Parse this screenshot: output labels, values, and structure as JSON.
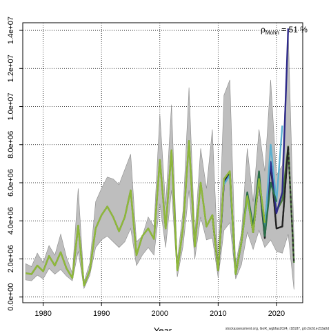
{
  "chart_data": {
    "type": "line",
    "xlabel": "Year",
    "ylabel": "",
    "x_ticks": [
      1980,
      1990,
      2000,
      2010,
      2020
    ],
    "y_ticks": [
      "0.0e+00",
      "2.0e+06",
      "4.0e+06",
      "6.0e+06",
      "8.0e+06",
      "1.0e+07",
      "1.2e+07",
      "1.4e+07"
    ],
    "y_tick_values": [
      0,
      2000000,
      4000000,
      6000000,
      8000000,
      10000000,
      12000000,
      14000000
    ],
    "xlim": [
      1976.5,
      2024.5
    ],
    "ylim": [
      -300000,
      14400000
    ],
    "grid": true,
    "annotation": {
      "symbol": "ρ",
      "subscript": "Mohn",
      "text": " = 51 %"
    },
    "footer": "stockassessment.org, GoR_wgbfas2024, r18187, git:c9c61ec53a0d",
    "band": {
      "color": "#bebebe",
      "x": [
        1977,
        1978,
        1979,
        1980,
        1981,
        1982,
        1983,
        1984,
        1985,
        1986,
        1987,
        1988,
        1989,
        1990,
        1991,
        1992,
        1993,
        1994,
        1995,
        1996,
        1997,
        1998,
        1999,
        2000,
        2001,
        2002,
        2003,
        2004,
        2005,
        2006,
        2007,
        2008,
        2009,
        2010,
        2011,
        2012,
        2013,
        2014,
        2015,
        2016,
        2017,
        2018,
        2019,
        2020,
        2021,
        2022,
        2023
      ],
      "lower": [
        900000,
        850000,
        1150000,
        950000,
        1500000,
        1200000,
        1450000,
        1100000,
        850000,
        2400000,
        450000,
        1150000,
        2600000,
        3000000,
        3200000,
        2900000,
        2600000,
        2900000,
        3600000,
        1650000,
        2200000,
        2600000,
        2200000,
        4900000,
        2600000,
        5600000,
        1050000,
        2700000,
        5600000,
        2000000,
        4200000,
        3000000,
        3100000,
        1000000,
        3500000,
        3900000,
        950000,
        1700000,
        3400000,
        2500000,
        3500000,
        2600000,
        3000000,
        2400000,
        2300000,
        3300000,
        400000
      ],
      "upper": [
        1750000,
        1600000,
        2300000,
        1800000,
        2700000,
        2200000,
        3300000,
        2100000,
        1250000,
        5700000,
        800000,
        1800000,
        5000000,
        5700000,
        6300000,
        6200000,
        5900000,
        6700000,
        7500000,
        2900000,
        3200000,
        4200000,
        3700000,
        9600000,
        4800000,
        10100000,
        1900000,
        4600000,
        11000000,
        3300000,
        7800000,
        5700000,
        8800000,
        1700000,
        10600000,
        11400000,
        1700000,
        3400000,
        7800000,
        5000000,
        8800000,
        6600000,
        11400000,
        6400000,
        6900000,
        14100000,
        3100000
      ]
    },
    "series": [
      {
        "color": "#4a7a3a",
        "x": [
          1977,
          1978,
          1979,
          1980,
          1981,
          1982,
          1983,
          1984,
          1985,
          1986,
          1987,
          1988,
          1989,
          1990,
          1991,
          1992,
          1993,
          1994,
          1995,
          1996,
          1997,
          1998,
          1999,
          2000,
          2001,
          2002,
          2003,
          2004,
          2005,
          2006,
          2007,
          2008,
          2009,
          2010,
          2011,
          2012,
          2013,
          2014,
          2015,
          2016,
          2017,
          2018,
          2019,
          2020,
          2021,
          2022,
          2023
        ],
        "values": [
          1250000,
          1200000,
          1650000,
          1350000,
          2150000,
          1650000,
          2350000,
          1500000,
          1000000,
          3750000,
          600000,
          1400000,
          3600000,
          4300000,
          4750000,
          4200000,
          3450000,
          4200000,
          5600000,
          2200000,
          3200000,
          3600000,
          3050000,
          7200000,
          3600000,
          7700000,
          1400000,
          3700000,
          8200000,
          2650000,
          6000000,
          3700000,
          4300000,
          1400000,
          6200000,
          6600000,
          1200000,
          2900000,
          5300000,
          3400000,
          6200000,
          3900000,
          7000000,
          4500000,
          5100000,
          7900000,
          1800000
        ]
      },
      {
        "color": "#2b2b2b",
        "dashed": true,
        "x": [
          2008,
          2009,
          2010,
          2011,
          2012,
          2013,
          2014,
          2015,
          2016,
          2017,
          2018,
          2019,
          2020,
          2021,
          2022,
          2023
        ],
        "values": [
          3700000,
          4300000,
          1400000,
          6100000,
          6500000,
          1200000,
          2900000,
          5300000,
          3400000,
          6200000,
          3100000,
          7000000,
          3600000,
          3700000,
          7900000,
          1800000
        ]
      },
      {
        "color": "#222222",
        "x": [
          2009,
          2010,
          2011,
          2012,
          2013,
          2014,
          2015,
          2016,
          2017,
          2018,
          2019,
          2020,
          2021,
          2022
        ],
        "values": [
          4300000,
          1400000,
          6100000,
          6500000,
          1200000,
          2900000,
          5300000,
          3400000,
          6200000,
          3100000,
          7000000,
          3600000,
          3700000,
          7900000
        ]
      },
      {
        "color": "#2e2a8a",
        "x": [
          2010,
          2011,
          2012,
          2013,
          2014,
          2015,
          2016,
          2017,
          2018,
          2019,
          2020,
          2021,
          2022
        ],
        "values": [
          1400000,
          6000000,
          6400000,
          1200000,
          2900000,
          5300000,
          3500000,
          6300000,
          3300000,
          7100000,
          4400000,
          5500000,
          14100000
        ]
      },
      {
        "color": "#5bb0d0",
        "x": [
          2011,
          2012,
          2013,
          2014,
          2015,
          2016,
          2017,
          2018,
          2019,
          2020,
          2021
        ],
        "values": [
          5900000,
          6400000,
          1200000,
          2900000,
          5200000,
          3500000,
          6300000,
          3500000,
          8000000,
          5000000,
          9000000
        ]
      },
      {
        "color": "#2a6e4a",
        "x": [
          2012,
          2013,
          2014,
          2015,
          2016,
          2017,
          2018,
          2019,
          2020
        ],
        "values": [
          6500000,
          1200000,
          2900000,
          5500000,
          3700000,
          6600000,
          3200000,
          6000000,
          5000000
        ]
      },
      {
        "color": "#8fb83a",
        "x": [
          1977,
          1978,
          1979,
          1980,
          1981,
          1982,
          1983,
          1984,
          1985,
          1986,
          1987,
          1988,
          1989,
          1990,
          1991,
          1992,
          1993,
          1994,
          1995,
          1996,
          1997,
          1998,
          1999,
          2000,
          2001,
          2002,
          2003,
          2004,
          2005,
          2006,
          2007,
          2008,
          2009,
          2010,
          2011,
          2012,
          2013,
          2014,
          2015,
          2016,
          2017,
          2018
        ],
        "values": [
          1250000,
          1200000,
          1650000,
          1350000,
          2150000,
          1650000,
          2350000,
          1500000,
          1000000,
          3750000,
          600000,
          1400000,
          3600000,
          4300000,
          4750000,
          4200000,
          3450000,
          4200000,
          5600000,
          2200000,
          3200000,
          3600000,
          3050000,
          7200000,
          3600000,
          7700000,
          1400000,
          3700000,
          8200000,
          2650000,
          6000000,
          3700000,
          4300000,
          1400000,
          6200000,
          6600000,
          1200000,
          2900000,
          5300000,
          3400000,
          6200000,
          3900000
        ]
      }
    ]
  }
}
